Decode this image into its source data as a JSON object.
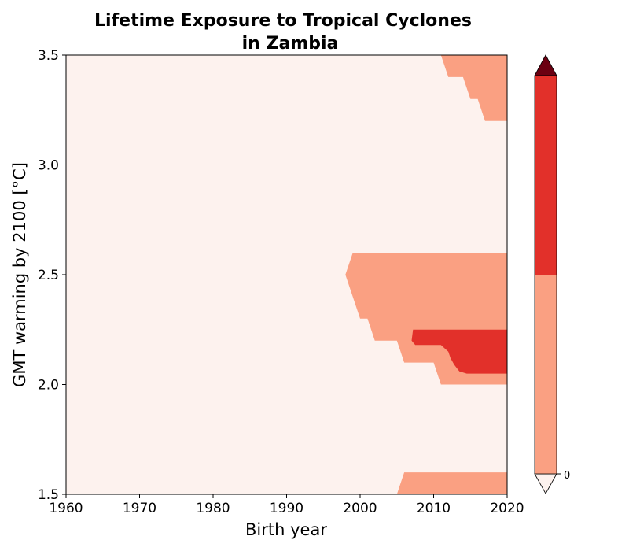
{
  "chart_data": {
    "type": "contour",
    "title_line1": "Lifetime Exposure to Tropical Cyclones",
    "title_line2": "in Zambia",
    "xlabel": "Birth year",
    "ylabel": "GMT warming by 2100 [°C]",
    "xlim": [
      1960,
      2020
    ],
    "ylim": [
      1.5,
      3.5
    ],
    "xticks": [
      "1960",
      "1970",
      "1980",
      "1990",
      "2000",
      "2010",
      "2020"
    ],
    "yticks": [
      "1.5",
      "2.0",
      "2.5",
      "3.0",
      "3.5"
    ],
    "colorbar": {
      "tick_label": "0",
      "colors": [
        "#fdf2ee",
        "#faa082",
        "#e2302a",
        "#6b0011"
      ],
      "extend": "both"
    },
    "background_color": "#fdf2ee",
    "regions": [
      {
        "name": "level-1-top",
        "color": "#faa082",
        "points": [
          [
            2011,
            3.5
          ],
          [
            2020,
            3.5
          ],
          [
            2020,
            3.2
          ],
          [
            2017,
            3.2
          ],
          [
            2016,
            3.3
          ],
          [
            2015,
            3.3
          ],
          [
            2014,
            3.4
          ],
          [
            2012,
            3.4
          ]
        ]
      },
      {
        "name": "level-1-middle",
        "color": "#faa082",
        "points": [
          [
            1999,
            2.6
          ],
          [
            2020,
            2.6
          ],
          [
            2020,
            2.0
          ],
          [
            2011,
            2.0
          ],
          [
            2010,
            2.1
          ],
          [
            2006,
            2.1
          ],
          [
            2005,
            2.2
          ],
          [
            2002,
            2.2
          ],
          [
            2001,
            2.3
          ],
          [
            2000,
            2.3
          ],
          [
            1998,
            2.5
          ]
        ]
      },
      {
        "name": "level-2-core",
        "color": "#e2302a",
        "points": [
          [
            2007.2,
            2.25
          ],
          [
            2020,
            2.25
          ],
          [
            2020,
            2.05
          ],
          [
            2014.5,
            2.05
          ],
          [
            2013.5,
            2.06
          ],
          [
            2012.8,
            2.09
          ],
          [
            2012.3,
            2.12
          ],
          [
            2012,
            2.15
          ],
          [
            2011,
            2.18
          ],
          [
            2007.5,
            2.18
          ],
          [
            2007,
            2.2
          ]
        ]
      },
      {
        "name": "level-1-bottom",
        "color": "#faa082",
        "points": [
          [
            2006,
            1.6
          ],
          [
            2020,
            1.6
          ],
          [
            2020,
            1.5
          ],
          [
            2005,
            1.5
          ]
        ]
      }
    ]
  }
}
